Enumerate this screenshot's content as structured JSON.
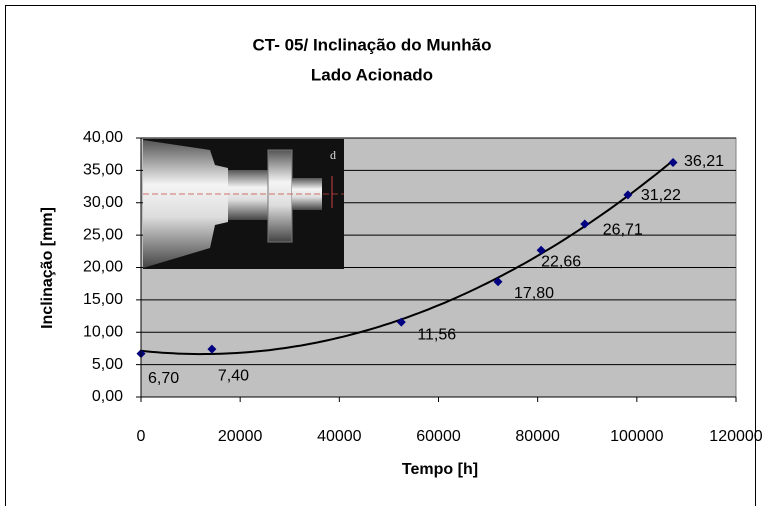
{
  "chart_data": {
    "type": "scatter",
    "title": "CT- 05/ Inclinação do Munhão",
    "subtitle": "Lado Acionado",
    "x_label": "Tempo [h]",
    "y_label": "Inclinação [mm]",
    "inset_label": "d",
    "x": [
      0,
      14300,
      52500,
      72000,
      80700,
      89500,
      98200,
      107300
    ],
    "series": [
      {
        "color": "#000080",
        "values": [
          6.7,
          7.4,
          11.56,
          17.8,
          22.66,
          26.71,
          31.22,
          36.21
        ],
        "value_labels": [
          "6,70",
          "7,40",
          "11,56",
          "17,80",
          "22,66",
          "26,71",
          "31,22",
          "36,21"
        ],
        "value_label_colors": [
          "#000000",
          "#000000",
          "#000000",
          "#000000",
          "#ff0000",
          "#ff0000",
          "#ff0000",
          "#ff0000"
        ],
        "trendline": {
          "kind": "polynomial",
          "order": 2,
          "color": "#000000"
        }
      }
    ],
    "xlim": [
      0,
      120000
    ],
    "xticks": [
      0,
      20000,
      40000,
      60000,
      80000,
      100000,
      120000
    ],
    "ylim": [
      0,
      40
    ],
    "yticks": [
      {
        "value": 0,
        "label": "0,00"
      },
      {
        "value": 5,
        "label": "5,00"
      },
      {
        "value": 10,
        "label": "10,00"
      },
      {
        "value": 15,
        "label": "15,00"
      },
      {
        "value": 20,
        "label": "20,00"
      },
      {
        "value": 25,
        "label": "25,00"
      },
      {
        "value": 30,
        "label": "30,00"
      },
      {
        "value": 35,
        "label": "35,00"
      },
      {
        "value": 40,
        "label": "40,00"
      }
    ],
    "grid": true,
    "plot_background": "#c0c0c0"
  }
}
